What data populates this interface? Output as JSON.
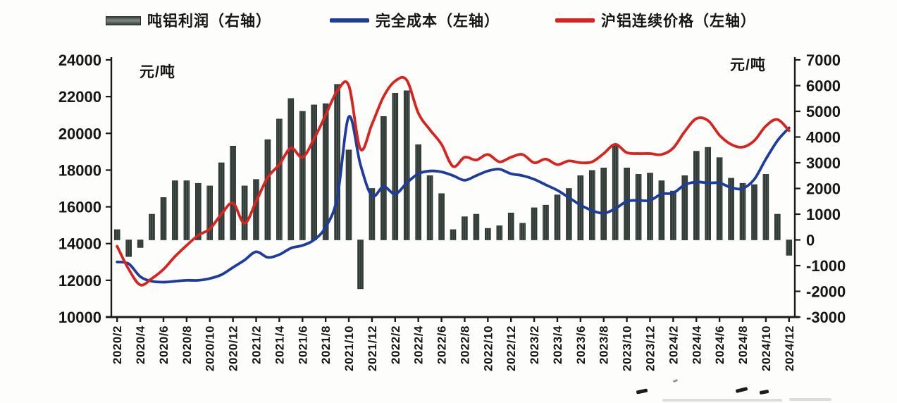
{
  "page": {
    "background": "#fdfdfc"
  },
  "legend": {
    "items": [
      {
        "label": "吨铝利润（右轴）",
        "swatch": "bar",
        "color": "#4a524f"
      },
      {
        "label": "完全成本（左轴）",
        "swatch": "line",
        "color": "#1e3c9b"
      },
      {
        "label": "沪铝连续价格（左轴）",
        "swatch": "line",
        "color": "#d8231f"
      }
    ]
  },
  "chart_data": {
    "type": "bar",
    "title": "",
    "grid": false,
    "legend_position": "top",
    "categories": [
      "2020/2",
      "2020/3",
      "2020/4",
      "2020/5",
      "2020/6",
      "2020/7",
      "2020/8",
      "2020/9",
      "2020/10",
      "2020/11",
      "2020/12",
      "2021/1",
      "2021/2",
      "2021/3",
      "2021/4",
      "2021/5",
      "2021/6",
      "2021/7",
      "2021/8",
      "2021/9",
      "2021/10",
      "2021/11",
      "2021/12",
      "2022/1",
      "2022/2",
      "2022/3",
      "2022/4",
      "2022/5",
      "2022/6",
      "2022/7",
      "2022/8",
      "2022/9",
      "2022/10",
      "2022/11",
      "2022/12",
      "2023/1",
      "2023/2",
      "2023/3",
      "2023/4",
      "2023/5",
      "2023/6",
      "2023/7",
      "2023/8",
      "2023/9",
      "2023/10",
      "2023/11",
      "2023/12",
      "2024/1",
      "2024/2",
      "2024/3",
      "2024/4",
      "2024/5",
      "2024/6",
      "2024/7",
      "2024/8",
      "2024/9",
      "2024/10",
      "2024/11",
      "2024/12"
    ],
    "x_tick_every": 2,
    "left_axis": {
      "label": "元/吨",
      "min": 10000,
      "max": 24000,
      "ticks": [
        24000,
        22000,
        20000,
        18000,
        16000,
        14000,
        12000,
        10000
      ]
    },
    "right_axis": {
      "label": "元/吨",
      "min": -3000,
      "max": 7000,
      "ticks": [
        7000,
        6000,
        5000,
        4000,
        3000,
        2000,
        1000,
        0,
        -1000,
        -2000,
        -3000
      ]
    },
    "series": [
      {
        "name": "吨铝利润（右轴）",
        "type": "bar",
        "axis": "right",
        "color": "#313b37",
        "values": [
          400,
          -650,
          -300,
          1000,
          1650,
          2300,
          2300,
          2200,
          2100,
          3000,
          3650,
          2100,
          2350,
          3900,
          4700,
          5500,
          5000,
          5250,
          5300,
          6050,
          3500,
          -1900,
          2000,
          4800,
          5700,
          5800,
          3700,
          2500,
          1800,
          400,
          900,
          1000,
          450,
          550,
          1050,
          650,
          1250,
          1350,
          1750,
          2000,
          2500,
          2700,
          2800,
          3700,
          2800,
          2550,
          2600,
          2300,
          1900,
          2500,
          3450,
          3600,
          3200,
          2400,
          2200,
          2150,
          2550,
          1000,
          -600
        ]
      },
      {
        "name": "完全成本（左轴）",
        "type": "line",
        "axis": "left",
        "color": "#1e3c9b",
        "values": [
          13000,
          12900,
          12200,
          11950,
          11900,
          11950,
          12000,
          12000,
          12100,
          12300,
          12700,
          13100,
          13550,
          13250,
          13400,
          13750,
          13900,
          14200,
          14900,
          16500,
          20900,
          18300,
          16600,
          17100,
          16700,
          17300,
          17800,
          17950,
          17900,
          17700,
          17450,
          17700,
          17950,
          18050,
          17800,
          17700,
          17500,
          17200,
          16900,
          16500,
          16100,
          15800,
          15650,
          15900,
          16300,
          16350,
          16350,
          16700,
          16750,
          17200,
          17350,
          17300,
          17300,
          17050,
          17000,
          17500,
          18600,
          19600,
          20300
        ]
      },
      {
        "name": "沪铝连续价格（左轴）",
        "type": "line",
        "axis": "left",
        "color": "#d8231f",
        "values": [
          13850,
          12600,
          11750,
          12100,
          12600,
          13300,
          13900,
          14450,
          14800,
          15600,
          16200,
          15100,
          16300,
          17600,
          18300,
          19200,
          18700,
          19700,
          21000,
          22300,
          22600,
          19150,
          20500,
          22000,
          22850,
          22900,
          21100,
          20200,
          19400,
          18200,
          18700,
          18550,
          18850,
          18450,
          18700,
          18850,
          18400,
          18600,
          18300,
          18500,
          18400,
          18450,
          18900,
          19400,
          18950,
          18900,
          18900,
          18850,
          19200,
          20100,
          20800,
          20700,
          19900,
          19400,
          19250,
          19600,
          20400,
          20750,
          20150
        ]
      }
    ]
  }
}
